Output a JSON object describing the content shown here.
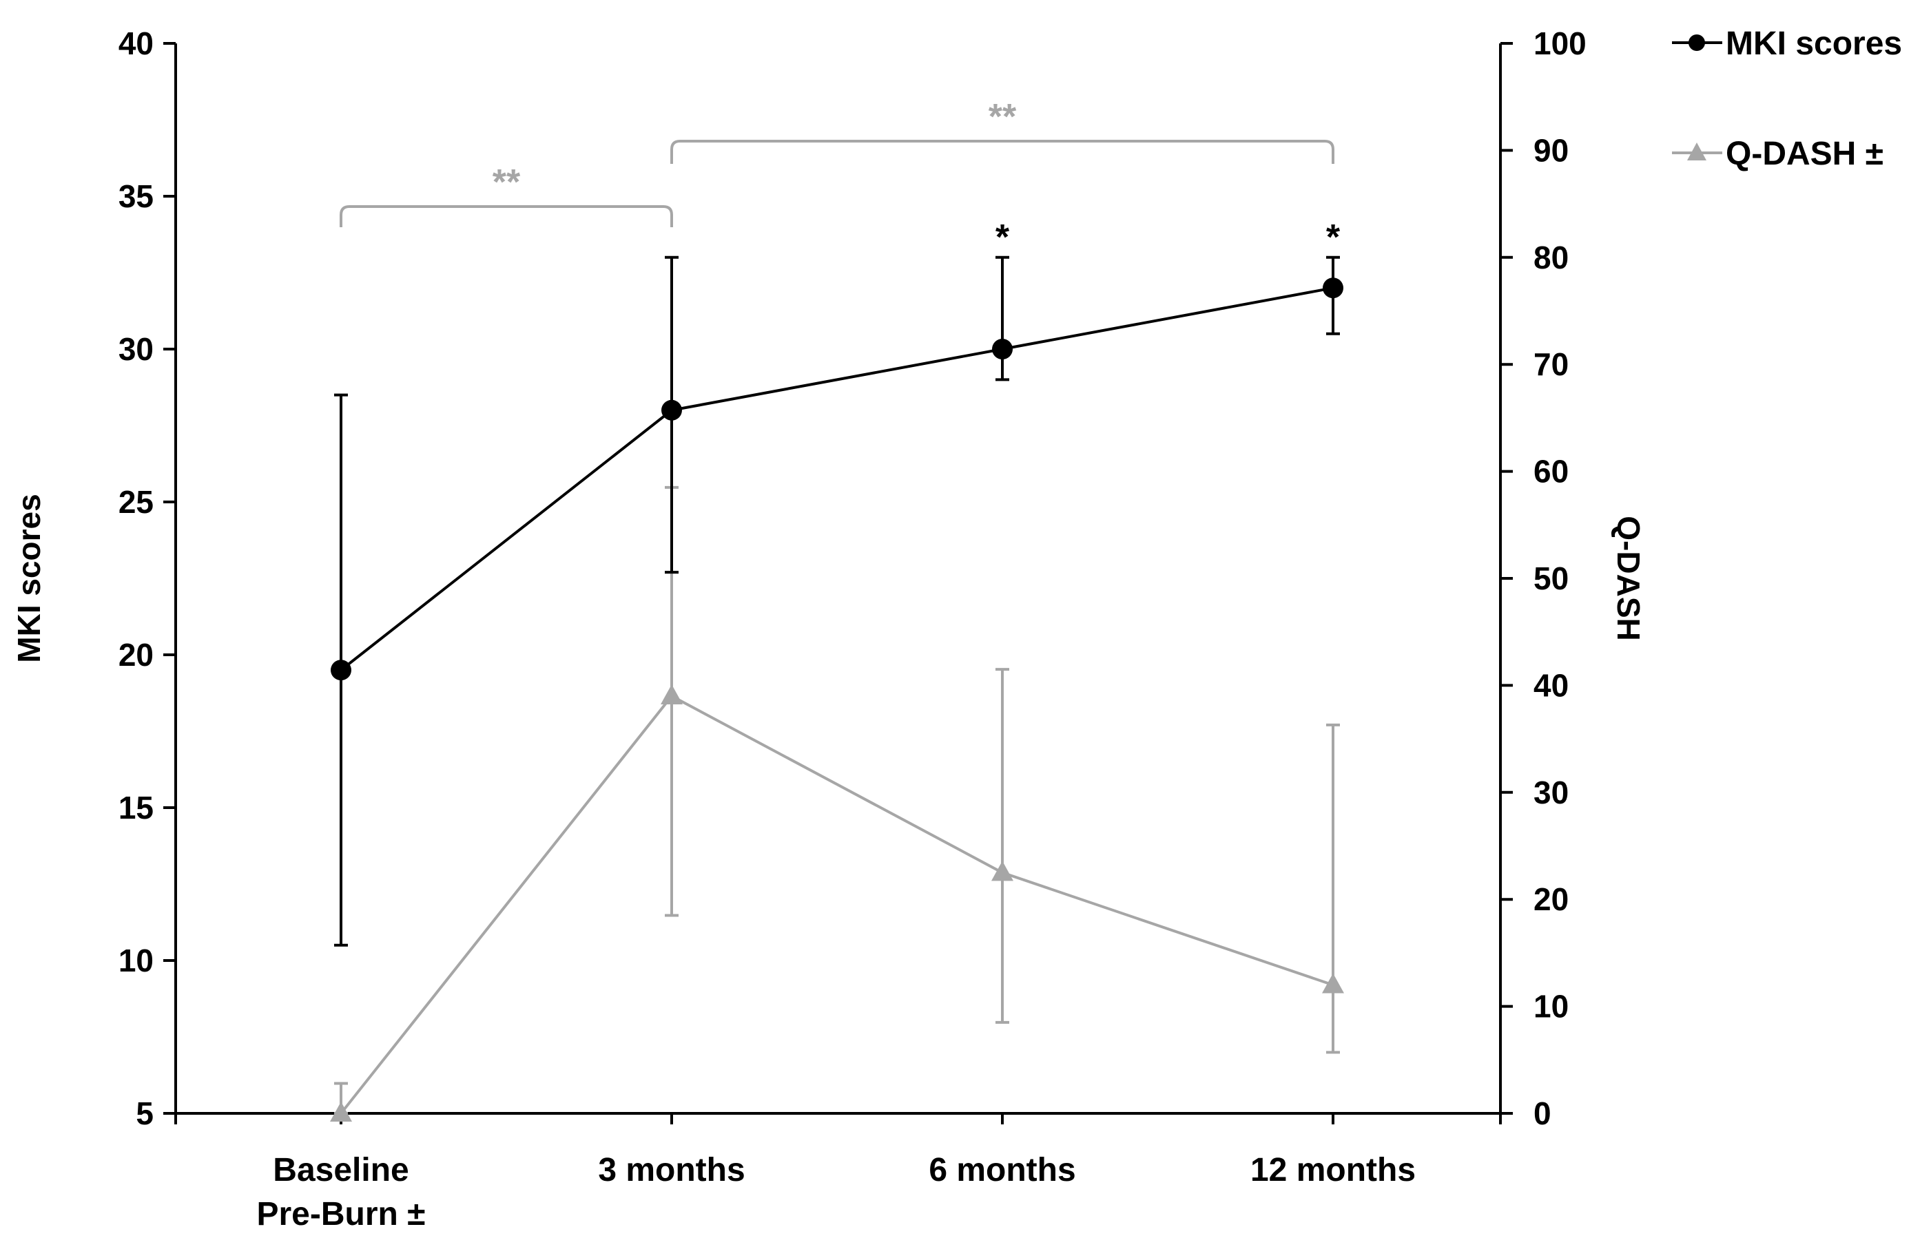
{
  "chart_data": {
    "type": "line",
    "categories": [
      [
        "Baseline",
        "Pre-Burn ±"
      ],
      [
        "3 months"
      ],
      [
        "6 months"
      ],
      [
        "12 months"
      ]
    ],
    "left_axis": {
      "label": "MKI scores",
      "range": [
        5,
        40
      ],
      "ticks": [
        5,
        10,
        15,
        20,
        25,
        30,
        35,
        40
      ]
    },
    "right_axis": {
      "label": "Q-DASH",
      "range": [
        0,
        100
      ],
      "ticks": [
        0,
        10,
        20,
        30,
        40,
        50,
        60,
        70,
        80,
        90,
        100
      ]
    },
    "series": [
      {
        "name": "MKI scores",
        "axis": "left",
        "color": "#000000",
        "marker": "circle",
        "values": [
          19.5,
          28,
          30,
          32
        ],
        "err_low": [
          10.5,
          22.7,
          29,
          30.5
        ],
        "err_high": [
          28.5,
          33,
          33,
          33
        ]
      },
      {
        "name": "Q-DASH ±",
        "axis": "right",
        "color": "#a6a6a6",
        "marker": "triangle",
        "values": [
          0,
          39,
          22.5,
          12
        ],
        "err_low": [
          0,
          18.5,
          8.5,
          5.7
        ],
        "err_high": [
          2.8,
          58.5,
          41.5,
          36.3
        ]
      }
    ],
    "annotations": {
      "point_stars": [
        {
          "category_index": 2,
          "text": "*"
        },
        {
          "category_index": 3,
          "text": "*"
        }
      ],
      "brackets": [
        {
          "from": 0,
          "to": 1,
          "text": "**",
          "color": "#a6a6a6"
        },
        {
          "from": 1,
          "to": 3,
          "text": "**",
          "color": "#a6a6a6"
        }
      ]
    },
    "legend": {
      "position": "top-right"
    },
    "grid": false
  }
}
